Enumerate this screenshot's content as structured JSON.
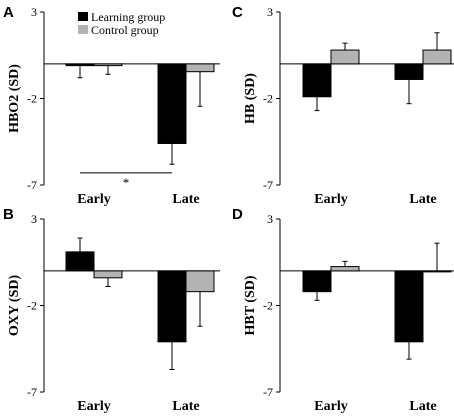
{
  "figure": {
    "legend": [
      {
        "label": "Learning group",
        "color": "#000000"
      },
      {
        "label": "Control group",
        "color": "#b3b3b3"
      }
    ]
  },
  "chart_data": [
    {
      "panel": "A",
      "type": "bar",
      "ylabel": "HBO2 (SD)",
      "ylim": [
        -7,
        3
      ],
      "yticks": [
        "3",
        "-2",
        "-7"
      ],
      "categories": [
        "Early",
        "Late"
      ],
      "series": [
        {
          "name": "Learning group",
          "color": "#000000",
          "values": [
            -0.1,
            -4.6
          ],
          "err_dir": [
            -1,
            -1
          ],
          "err": [
            0.7,
            1.2
          ]
        },
        {
          "name": "Control group",
          "color": "#b3b3b3",
          "values": [
            -0.1,
            -0.45
          ],
          "err_dir": [
            -1,
            -1
          ],
          "err": [
            0.5,
            2.0
          ]
        }
      ],
      "annotations": [
        {
          "text": "*",
          "between": [
            "Early",
            "Late"
          ],
          "y": -6.3
        }
      ],
      "legend": true
    },
    {
      "panel": "C",
      "type": "bar",
      "ylabel": "HB (SD)",
      "ylim": [
        -7,
        3
      ],
      "yticks": [
        "3",
        "-2",
        "-7"
      ],
      "categories": [
        "Early",
        "Late"
      ],
      "series": [
        {
          "name": "Learning group",
          "color": "#000000",
          "values": [
            -1.9,
            -0.9
          ],
          "err_dir": [
            -1,
            -1
          ],
          "err": [
            0.8,
            1.4
          ]
        },
        {
          "name": "Control group",
          "color": "#b3b3b3",
          "values": [
            0.8,
            0.8
          ],
          "err_dir": [
            1,
            1
          ],
          "err": [
            0.4,
            1.0
          ]
        }
      ],
      "legend": false
    },
    {
      "panel": "B",
      "type": "bar",
      "ylabel": "OXY (SD)",
      "ylim": [
        -7,
        3
      ],
      "yticks": [
        "3",
        "-2",
        "-7"
      ],
      "categories": [
        "Early",
        "Late"
      ],
      "series": [
        {
          "name": "Learning group",
          "color": "#000000",
          "values": [
            1.1,
            -4.1
          ],
          "err_dir": [
            1,
            -1
          ],
          "err": [
            0.8,
            1.6
          ]
        },
        {
          "name": "Control group",
          "color": "#b3b3b3",
          "values": [
            -0.4,
            -1.2
          ],
          "err_dir": [
            -1,
            -1
          ],
          "err": [
            0.5,
            2.0
          ]
        }
      ],
      "legend": false
    },
    {
      "panel": "D",
      "type": "bar",
      "ylabel": "HBT (SD)",
      "ylim": [
        -7,
        3
      ],
      "yticks": [
        "3",
        "-2",
        "-7"
      ],
      "categories": [
        "Early",
        "Late"
      ],
      "series": [
        {
          "name": "Learning group",
          "color": "#000000",
          "values": [
            -1.2,
            -4.1
          ],
          "err_dir": [
            -1,
            -1
          ],
          "err": [
            0.5,
            1.0
          ]
        },
        {
          "name": "Control group",
          "color": "#b3b3b3",
          "values": [
            0.25,
            0.0
          ],
          "err_dir": [
            1,
            1
          ],
          "err": [
            0.3,
            1.6
          ]
        }
      ],
      "legend": false
    }
  ]
}
